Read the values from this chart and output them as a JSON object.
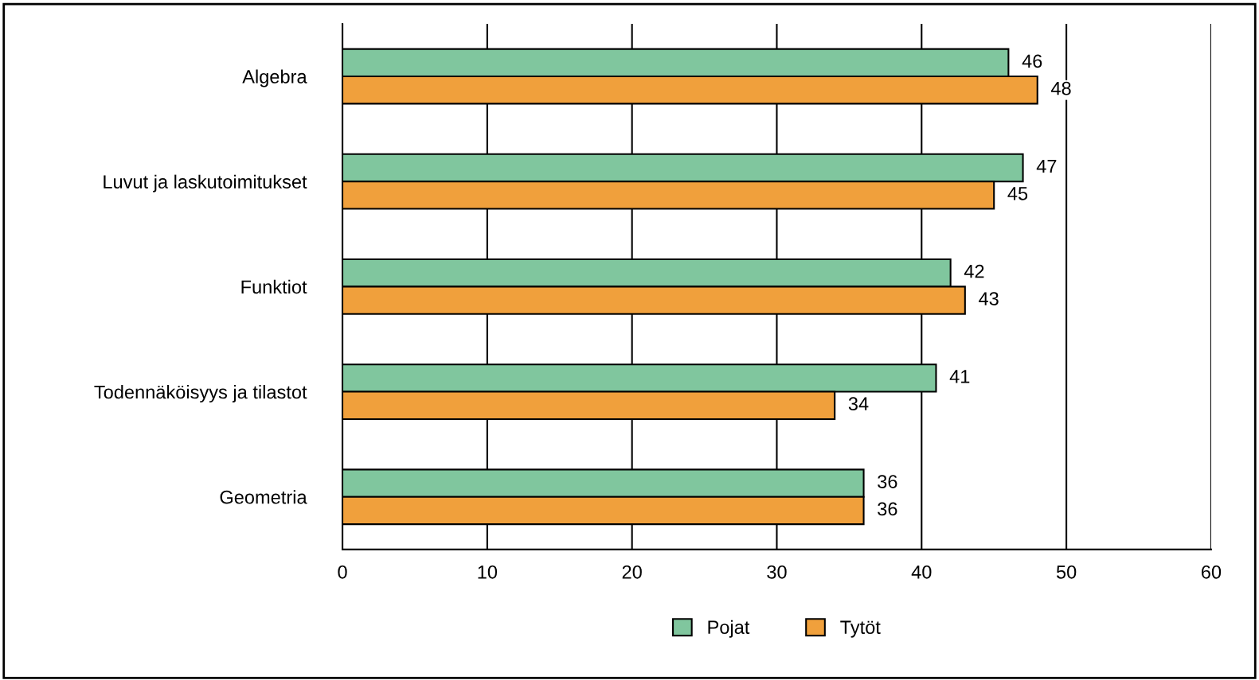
{
  "chart_data": {
    "type": "bar",
    "orientation": "horizontal",
    "categories": [
      "Algebra",
      "Luvut ja laskutoimitukset",
      "Funktiot",
      "Todennäköisyys ja tilastot",
      "Geometria"
    ],
    "series": [
      {
        "name": "Pojat",
        "color": "#80c69e",
        "values": [
          46,
          47,
          42,
          41,
          36
        ]
      },
      {
        "name": "Tytöt",
        "color": "#f0a03c",
        "values": [
          48,
          45,
          43,
          34,
          36
        ]
      }
    ],
    "xlim": [
      0,
      60
    ],
    "xticks": [
      0,
      10,
      20,
      30,
      40,
      50,
      60
    ],
    "grid": "x",
    "legend": "bottom",
    "data_labels": true
  }
}
